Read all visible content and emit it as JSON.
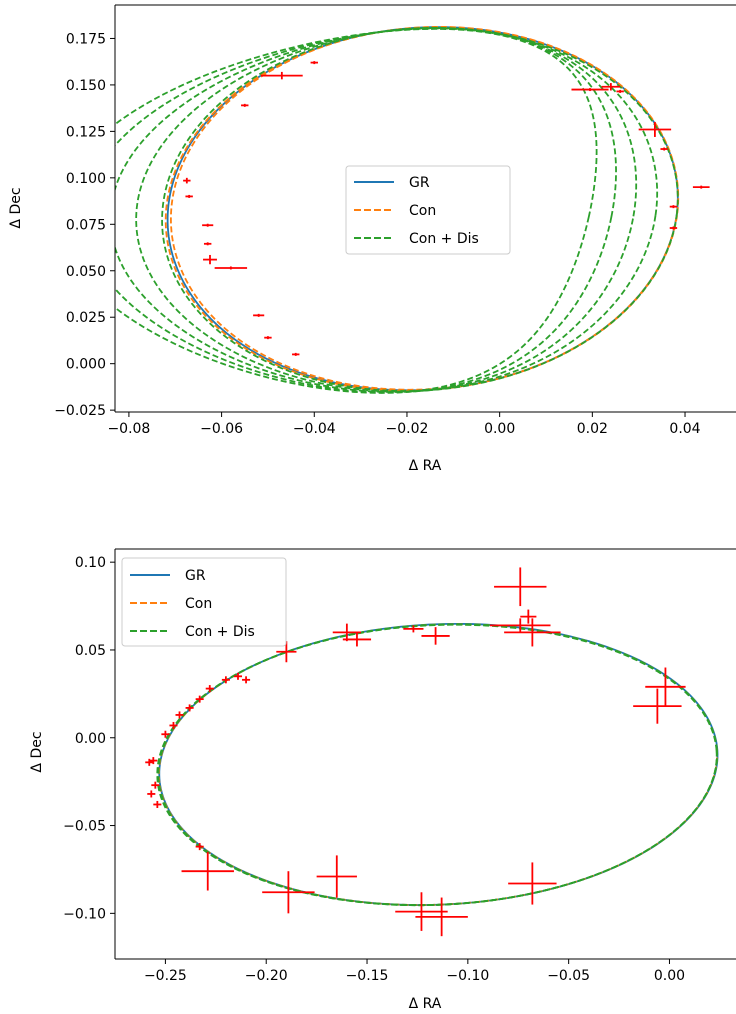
{
  "chart_data": [
    {
      "type": "scatter",
      "xlabel": "Δ RA",
      "ylabel": "Δ Dec",
      "xlim": [
        -0.083,
        0.051
      ],
      "ylim": [
        -0.026,
        0.193
      ],
      "xticks": [
        -0.08,
        -0.06,
        -0.04,
        -0.02,
        0.0,
        0.02,
        0.04
      ],
      "xtick_labels": [
        "−0.08",
        "−0.06",
        "−0.04",
        "−0.02",
        "0.00",
        "0.02",
        "0.04"
      ],
      "yticks": [
        -0.025,
        0.0,
        0.025,
        0.05,
        0.075,
        0.1,
        0.125,
        0.15,
        0.175
      ],
      "ytick_labels": [
        "−0.025",
        "0.000",
        "0.025",
        "0.050",
        "0.075",
        "0.100",
        "0.125",
        "0.150",
        "0.175"
      ],
      "legend": [
        "GR",
        "Con",
        "Con + Dis"
      ],
      "legend_position": "center",
      "series": [
        {
          "name": "GR",
          "style": "solid",
          "color": "#1f77b4",
          "orbits": [
            {
              "cx": -0.0166,
              "cy": 0.0834,
              "a": 0.0549,
              "b": 0.0978,
              "rot": -0.05,
              "sx": 0,
              "sy": 0
            }
          ]
        },
        {
          "name": "Con",
          "style": "dashed",
          "color": "#ff7f0e",
          "orbits": [
            {
              "cx": -0.0168,
              "cy": 0.0832,
              "a": 0.0551,
              "b": 0.0978,
              "rot": -0.052,
              "sx": 0,
              "sy": 0
            },
            {
              "cx": -0.0162,
              "cy": 0.0836,
              "a": 0.0546,
              "b": 0.0977,
              "rot": -0.048,
              "sx": 0,
              "sy": 0
            }
          ]
        },
        {
          "name": "Con + Dis",
          "style": "dashed",
          "color": "#2ca02c",
          "orbits": [
            {
              "cx": -0.0172,
              "cy": 0.083,
              "a": 0.0555,
              "b": 0.0978,
              "rot": -0.05,
              "sx": 0,
              "sy": 0
            },
            {
              "cx": -0.0178,
              "cy": 0.0828,
              "a": 0.056,
              "b": 0.0979,
              "rot": -0.06,
              "sx": -0.08,
              "sy": 0.2
            },
            {
              "cx": -0.0184,
              "cy": 0.0826,
              "a": 0.0564,
              "b": 0.098,
              "rot": -0.07,
              "sx": -0.16,
              "sy": 0.35
            },
            {
              "cx": -0.019,
              "cy": 0.0824,
              "a": 0.0569,
              "b": 0.0981,
              "rot": -0.08,
              "sx": -0.24,
              "sy": 0.5
            },
            {
              "cx": -0.0196,
              "cy": 0.0822,
              "a": 0.0573,
              "b": 0.0982,
              "rot": -0.09,
              "sx": -0.32,
              "sy": 0.65
            }
          ]
        }
      ],
      "observations": [
        {
          "x": -0.047,
          "y": 0.155,
          "xerr": 0.0045,
          "yerr": 0.002
        },
        {
          "x": -0.04,
          "y": 0.162,
          "xerr": 0.0008,
          "yerr": 0.0008
        },
        {
          "x": -0.055,
          "y": 0.139,
          "xerr": 0.0008,
          "yerr": 0.0008
        },
        {
          "x": -0.0675,
          "y": 0.0985,
          "xerr": 0.0008,
          "yerr": 0.0015
        },
        {
          "x": -0.067,
          "y": 0.09,
          "xerr": 0.0008,
          "yerr": 0.0008
        },
        {
          "x": -0.063,
          "y": 0.0745,
          "xerr": 0.0012,
          "yerr": 0.0008
        },
        {
          "x": -0.063,
          "y": 0.0645,
          "xerr": 0.0008,
          "yerr": 0.0008
        },
        {
          "x": -0.0625,
          "y": 0.056,
          "xerr": 0.0015,
          "yerr": 0.0025
        },
        {
          "x": -0.058,
          "y": 0.0515,
          "xerr": 0.0035,
          "yerr": 0.0008
        },
        {
          "x": -0.052,
          "y": 0.026,
          "xerr": 0.0012,
          "yerr": 0.0008
        },
        {
          "x": -0.05,
          "y": 0.014,
          "xerr": 0.0008,
          "yerr": 0.0008
        },
        {
          "x": -0.044,
          "y": 0.005,
          "xerr": 0.0008,
          "yerr": 0.0008
        },
        {
          "x": 0.0195,
          "y": 0.1475,
          "xerr": 0.004,
          "yerr": 0.0008
        },
        {
          "x": 0.024,
          "y": 0.149,
          "xerr": 0.002,
          "yerr": 0.002
        },
        {
          "x": 0.026,
          "y": 0.1465,
          "xerr": 0.0008,
          "yerr": 0.0008
        },
        {
          "x": 0.0335,
          "y": 0.126,
          "xerr": 0.0035,
          "yerr": 0.004
        },
        {
          "x": 0.0355,
          "y": 0.1155,
          "xerr": 0.0008,
          "yerr": 0.0008
        },
        {
          "x": 0.0375,
          "y": 0.0845,
          "xerr": 0.0008,
          "yerr": 0.0008
        },
        {
          "x": 0.0375,
          "y": 0.073,
          "xerr": 0.0008,
          "yerr": 0.0008
        },
        {
          "x": 0.0435,
          "y": 0.095,
          "xerr": 0.0018,
          "yerr": 0.0008
        }
      ]
    },
    {
      "type": "scatter",
      "xlabel": "Δ RA",
      "ylabel": "Δ Dec",
      "xlim": [
        -0.275,
        0.033
      ],
      "ylim": [
        -0.126,
        0.1075
      ],
      "xticks": [
        -0.25,
        -0.2,
        -0.15,
        -0.1,
        -0.05,
        0.0
      ],
      "xtick_labels": [
        "−0.25",
        "−0.20",
        "−0.15",
        "−0.10",
        "−0.05",
        "0.00"
      ],
      "yticks": [
        -0.1,
        -0.05,
        0.0,
        0.05,
        0.1
      ],
      "ytick_labels": [
        "−0.10",
        "−0.05",
        "0.00",
        "0.05",
        "0.10"
      ],
      "legend": [
        "GR",
        "Con",
        "Con + Dis"
      ],
      "legend_position": "upper left",
      "series": [
        {
          "name": "GR",
          "style": "solid",
          "color": "#1f77b4",
          "orbits": [
            {
              "cx": -0.1146,
              "cy": -0.0152,
              "a": 0.1386,
              "b": 0.0798,
              "rot": 0.058,
              "sx": 0,
              "sy": 0
            }
          ]
        },
        {
          "name": "Con",
          "style": "dashed",
          "color": "#ff7f0e",
          "orbits": [
            {
              "cx": -0.1148,
              "cy": -0.0153,
              "a": 0.1386,
              "b": 0.0797,
              "rot": 0.058,
              "sx": 0,
              "sy": 0
            }
          ]
        },
        {
          "name": "Con + Dis",
          "style": "dashed",
          "color": "#2ca02c",
          "orbits": [
            {
              "cx": -0.1149,
              "cy": -0.0153,
              "a": 0.1387,
              "b": 0.0797,
              "rot": 0.058,
              "sx": 0,
              "sy": 0
            },
            {
              "cx": -0.1151,
              "cy": -0.0154,
              "a": 0.1388,
              "b": 0.0797,
              "rot": 0.058,
              "sx": 0,
              "sy": 0
            },
            {
              "cx": -0.1153,
              "cy": -0.0155,
              "a": 0.1389,
              "b": 0.0796,
              "rot": 0.058,
              "sx": 0,
              "sy": 0
            }
          ]
        }
      ],
      "observations": [
        {
          "x": -0.074,
          "y": 0.086,
          "xerr": 0.013,
          "yerr": 0.011
        },
        {
          "x": -0.074,
          "y": 0.064,
          "xerr": 0.015,
          "yerr": 0.004
        },
        {
          "x": -0.068,
          "y": 0.06,
          "xerr": 0.014,
          "yerr": 0.008
        },
        {
          "x": -0.07,
          "y": 0.069,
          "xerr": 0.004,
          "yerr": 0.004
        },
        {
          "x": -0.116,
          "y": 0.058,
          "xerr": 0.007,
          "yerr": 0.005
        },
        {
          "x": -0.127,
          "y": 0.062,
          "xerr": 0.005,
          "yerr": 0.002
        },
        {
          "x": -0.16,
          "y": 0.06,
          "xerr": 0.007,
          "yerr": 0.005
        },
        {
          "x": -0.155,
          "y": 0.056,
          "xerr": 0.007,
          "yerr": 0.004
        },
        {
          "x": -0.19,
          "y": 0.049,
          "xerr": 0.005,
          "yerr": 0.006
        },
        {
          "x": -0.006,
          "y": 0.018,
          "xerr": 0.012,
          "yerr": 0.01
        },
        {
          "x": -0.002,
          "y": 0.029,
          "xerr": 0.01,
          "yerr": 0.011
        },
        {
          "x": -0.229,
          "y": -0.076,
          "xerr": 0.013,
          "yerr": 0.011
        },
        {
          "x": -0.189,
          "y": -0.088,
          "xerr": 0.013,
          "yerr": 0.012
        },
        {
          "x": -0.165,
          "y": -0.079,
          "xerr": 0.01,
          "yerr": 0.012
        },
        {
          "x": -0.123,
          "y": -0.099,
          "xerr": 0.013,
          "yerr": 0.011
        },
        {
          "x": -0.113,
          "y": -0.102,
          "xerr": 0.013,
          "yerr": 0.011
        },
        {
          "x": -0.068,
          "y": -0.083,
          "xerr": 0.012,
          "yerr": 0.012
        },
        {
          "x": -0.214,
          "y": 0.035,
          "xerr": 0.002,
          "yerr": 0.002
        },
        {
          "x": -0.22,
          "y": 0.033,
          "xerr": 0.002,
          "yerr": 0.002
        },
        {
          "x": -0.228,
          "y": 0.028,
          "xerr": 0.002,
          "yerr": 0.002
        },
        {
          "x": -0.233,
          "y": 0.022,
          "xerr": 0.002,
          "yerr": 0.002
        },
        {
          "x": -0.238,
          "y": 0.017,
          "xerr": 0.002,
          "yerr": 0.002
        },
        {
          "x": -0.243,
          "y": 0.013,
          "xerr": 0.002,
          "yerr": 0.002
        },
        {
          "x": -0.246,
          "y": 0.007,
          "xerr": 0.002,
          "yerr": 0.002
        },
        {
          "x": -0.25,
          "y": 0.002,
          "xerr": 0.002,
          "yerr": 0.002
        },
        {
          "x": -0.256,
          "y": -0.013,
          "xerr": 0.002,
          "yerr": 0.002
        },
        {
          "x": -0.258,
          "y": -0.014,
          "xerr": 0.002,
          "yerr": 0.002
        },
        {
          "x": -0.255,
          "y": -0.027,
          "xerr": 0.002,
          "yerr": 0.002
        },
        {
          "x": -0.257,
          "y": -0.032,
          "xerr": 0.002,
          "yerr": 0.002
        },
        {
          "x": -0.254,
          "y": -0.038,
          "xerr": 0.002,
          "yerr": 0.002
        },
        {
          "x": -0.233,
          "y": -0.062,
          "xerr": 0.002,
          "yerr": 0.002
        },
        {
          "x": -0.21,
          "y": 0.033,
          "xerr": 0.002,
          "yerr": 0.002
        }
      ]
    }
  ]
}
